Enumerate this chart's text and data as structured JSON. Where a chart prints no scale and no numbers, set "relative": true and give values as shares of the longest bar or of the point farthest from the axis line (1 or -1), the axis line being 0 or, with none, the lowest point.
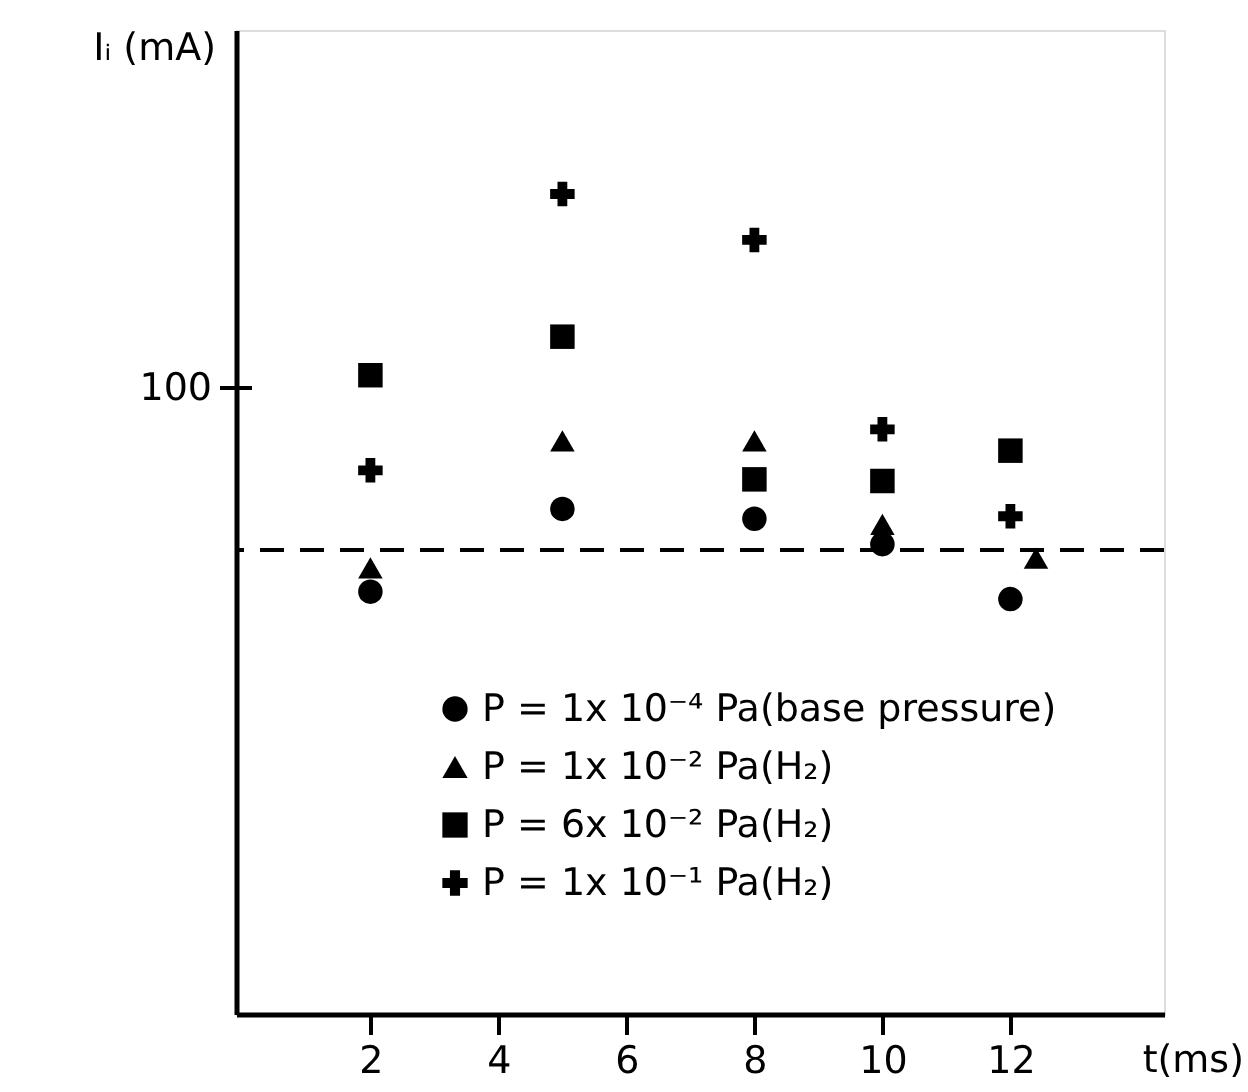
{
  "chart_data": {
    "type": "scatter",
    "xlabel": "t(ms)",
    "ylabel": "Iᵢ (mA)",
    "relative": true,
    "xlim": [
      -0.1,
      14.4
    ],
    "xticks": [
      2,
      4,
      6,
      8,
      10,
      12
    ],
    "grid": false,
    "legend": "bottom",
    "series": [
      {
        "name": "P = 1x 10⁻⁴ Pa(base pressure)",
        "color": "#000000",
        "marker": "circle",
        "x": [
          2,
          5,
          8,
          10,
          12
        ],
        "values": [
          0.515,
          0.616,
          0.604,
          0.573,
          0.506
        ]
      },
      {
        "name": "P = 1x 10⁻² Pa(H₂)",
        "color": "#000000",
        "marker": "triangle",
        "x": [
          2,
          5,
          8,
          10,
          12.4
        ],
        "values": [
          0.544,
          0.699,
          0.699,
          0.597,
          0.556
        ]
      },
      {
        "name": "P = 6x 10⁻² Pa(H₂)",
        "color": "#000000",
        "marker": "square",
        "x": [
          2,
          5,
          8,
          10,
          12
        ],
        "values": [
          0.779,
          0.826,
          0.652,
          0.65,
          0.687
        ]
      },
      {
        "name": "P = 1x 10⁻¹ Pa(H₂)",
        "color": "#000000",
        "marker": "cross",
        "x": [
          2,
          5,
          8,
          10,
          12
        ],
        "values": [
          0.663,
          1.0,
          0.944,
          0.713,
          0.607
        ]
      }
    ],
    "ref_lines": [
      {
        "axis": "y",
        "value": 0.566,
        "color": "#000000",
        "line_style": "dashed"
      }
    ],
    "annotations": [
      "100"
    ]
  }
}
